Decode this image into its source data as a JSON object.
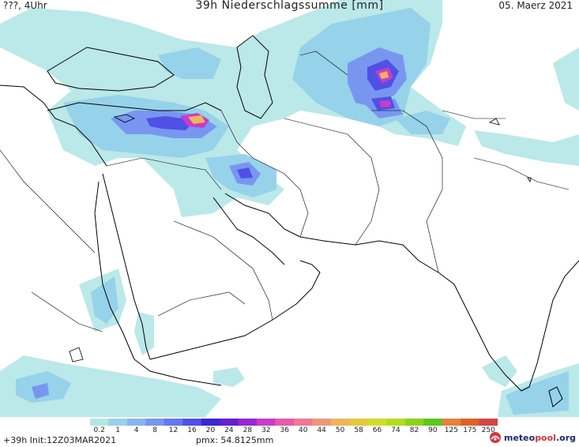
{
  "header": {
    "left": "???, 4Uhr",
    "title": "39h Niederschlagssumme [mm]",
    "date": "05. Maerz 2021"
  },
  "legend": {
    "ticks": [
      "0.2",
      "1",
      "4",
      "8",
      "12",
      "16",
      "20",
      "24",
      "28",
      "32",
      "36",
      "40",
      "44",
      "50",
      "58",
      "66",
      "74",
      "82",
      "90",
      "125",
      "175",
      "250"
    ],
    "colors": [
      "#b4e6e6",
      "#96d2ea",
      "#8cb4ee",
      "#7896f0",
      "#6478f0",
      "#5050e6",
      "#3c28d2",
      "#6420d2",
      "#9628d2",
      "#c83cc8",
      "#e65aaa",
      "#f07896",
      "#f09678",
      "#f0b45a",
      "#e6c83c",
      "#d2dc28",
      "#b4dc1e",
      "#8cd21e",
      "#5ac81e",
      "#e6823c",
      "#dc6428",
      "#d24646"
    ]
  },
  "footer": {
    "init": "+39h  Init:12Z03MAR2021",
    "pmx": "pmx: 54.8125mm"
  },
  "brand": {
    "name_main": "meteo",
    "name_accent": "pool",
    "name_tld": ".org"
  }
}
